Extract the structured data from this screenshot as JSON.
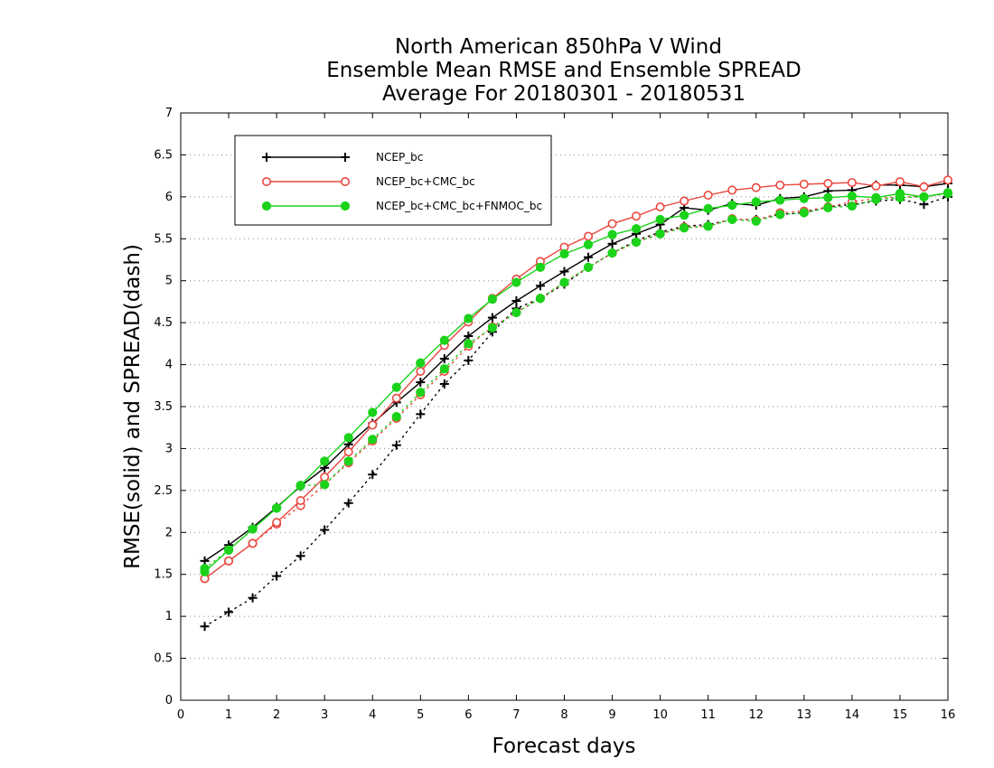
{
  "chart_data": {
    "type": "line",
    "title_lines": [
      "North American 850hPa V Wind",
      "Ensemble Mean RMSE and Ensemble SPREAD",
      "Average For 20180301 - 20180531"
    ],
    "xlabel": "Forecast days",
    "ylabel": "RMSE(solid) and SPREAD(dash)",
    "xlim": [
      0,
      16
    ],
    "ylim": [
      0,
      7
    ],
    "x_ticks": [
      "0",
      "1",
      "2",
      "3",
      "4",
      "5",
      "6",
      "7",
      "8",
      "9",
      "10",
      "11",
      "12",
      "13",
      "14",
      "15",
      "16"
    ],
    "y_ticks": [
      "0",
      "0.5",
      "1",
      "1.5",
      "2",
      "2.5",
      "3",
      "3.5",
      "4",
      "4.5",
      "5",
      "5.5",
      "6",
      "6.5",
      "7"
    ],
    "grid": "horizontal dotted",
    "legend_position": "top-left",
    "x": [
      0.5,
      1,
      1.5,
      2,
      2.5,
      3,
      3.5,
      4,
      4.5,
      5,
      5.5,
      6,
      6.5,
      7,
      7.5,
      8,
      8.5,
      9,
      9.5,
      10,
      10.5,
      11,
      11.5,
      12,
      12.5,
      13,
      13.5,
      14,
      14.5,
      15,
      15.5,
      16
    ],
    "series": [
      {
        "name": "NCEP_bc",
        "color": "#000000",
        "marker": "plus",
        "rmse": [
          1.66,
          1.85,
          2.06,
          2.3,
          2.55,
          2.77,
          3.05,
          3.3,
          3.55,
          3.79,
          4.07,
          4.34,
          4.56,
          4.76,
          4.94,
          5.11,
          5.28,
          5.44,
          5.56,
          5.67,
          5.87,
          5.84,
          5.92,
          5.9,
          5.98,
          6.0,
          6.07,
          6.08,
          6.14,
          6.14,
          6.12,
          6.16
        ],
        "spread": [
          0.88,
          1.05,
          1.22,
          1.48,
          1.72,
          2.03,
          2.35,
          2.69,
          3.04,
          3.41,
          3.77,
          4.05,
          4.39,
          4.67,
          4.79,
          4.96,
          5.16,
          5.33,
          5.48,
          5.58,
          5.65,
          5.67,
          5.73,
          5.73,
          5.79,
          5.81,
          5.88,
          5.91,
          5.95,
          5.97,
          5.91,
          6.0
        ]
      },
      {
        "name": "NCEP_bc+CMC_bc",
        "color": "#e8473f",
        "marker": "open-circle",
        "rmse": [
          1.45,
          1.66,
          1.87,
          2.12,
          2.38,
          2.66,
          2.96,
          3.28,
          3.6,
          3.92,
          4.23,
          4.51,
          4.79,
          5.02,
          5.23,
          5.4,
          5.53,
          5.68,
          5.77,
          5.88,
          5.95,
          6.02,
          6.08,
          6.11,
          6.14,
          6.15,
          6.16,
          6.17,
          6.13,
          6.18,
          6.12,
          6.2
        ],
        "spread": [
          1.45,
          1.66,
          1.87,
          2.1,
          2.32,
          2.57,
          2.83,
          3.09,
          3.36,
          3.64,
          3.92,
          4.22,
          4.45,
          4.62,
          4.79,
          4.98,
          5.16,
          5.33,
          5.46,
          5.56,
          5.64,
          5.65,
          5.74,
          5.72,
          5.81,
          5.83,
          5.88,
          5.94,
          5.98,
          6.0,
          6.0,
          6.04
        ]
      },
      {
        "name": "NCEP_bc+CMC_bc+FNMOC_bc",
        "color": "#1ad31a",
        "marker": "filled-circle",
        "rmse": [
          1.53,
          1.79,
          2.04,
          2.29,
          2.56,
          2.85,
          3.13,
          3.43,
          3.73,
          4.02,
          4.29,
          4.55,
          4.78,
          4.98,
          5.16,
          5.32,
          5.43,
          5.55,
          5.62,
          5.73,
          5.78,
          5.86,
          5.9,
          5.94,
          5.96,
          5.98,
          5.99,
          6.01,
          5.99,
          6.04,
          6.0,
          6.05
        ],
        "spread": [
          1.57,
          1.79,
          2.04,
          2.29,
          2.56,
          2.57,
          2.85,
          3.11,
          3.38,
          3.67,
          3.95,
          4.25,
          4.44,
          4.62,
          4.79,
          4.98,
          5.16,
          5.33,
          5.46,
          5.56,
          5.63,
          5.65,
          5.73,
          5.71,
          5.79,
          5.81,
          5.87,
          5.89,
          5.97,
          5.99,
          6.0,
          6.04
        ]
      }
    ]
  }
}
